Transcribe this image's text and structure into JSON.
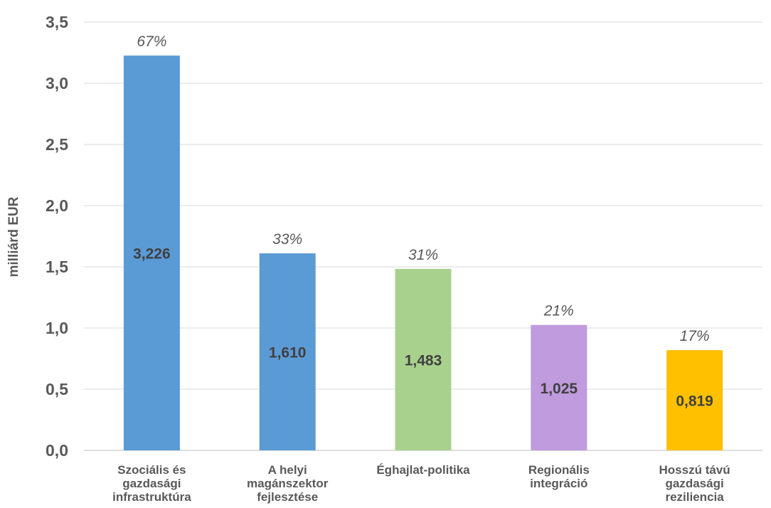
{
  "chart_data": {
    "type": "bar",
    "ylabel": "milliárd EUR",
    "ylim": [
      0,
      3.5
    ],
    "y_ticks": [
      "0,0",
      "0,5",
      "1,0",
      "1,5",
      "2,0",
      "2,5",
      "3,0",
      "3,5"
    ],
    "grid": true,
    "categories": [
      "Szociális és\ngazdasági\ninfrastruktúra",
      "A helyi\nmagánszektor\nfejlesztése",
      "Éghajlat-politika",
      "Regionális\nintegráció",
      "Hosszú távú\ngazdasági\nreziliencia"
    ],
    "values": [
      3.226,
      1.61,
      1.483,
      1.025,
      0.819
    ],
    "value_labels": [
      "3,226",
      "1,610",
      "1,483",
      "1,025",
      "0,819"
    ],
    "percent_labels": [
      "67%",
      "33%",
      "31%",
      "21%",
      "17%"
    ],
    "bar_colors": [
      "#5B9BD5",
      "#5B9BD5",
      "#A9D18E",
      "#C09BDE",
      "#FFC000"
    ]
  }
}
